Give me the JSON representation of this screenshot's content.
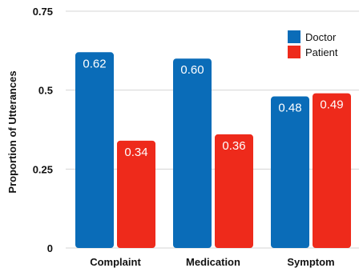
{
  "chart_data": {
    "type": "bar",
    "categories": [
      "Complaint",
      "Medication",
      "Symptom"
    ],
    "series": [
      {
        "name": "Doctor",
        "values": [
          0.62,
          0.6,
          0.48
        ],
        "labels": [
          "0.62",
          "0.60",
          "0.48"
        ],
        "color": "#0A6CB8"
      },
      {
        "name": "Patient",
        "values": [
          0.34,
          0.36,
          0.49
        ],
        "labels": [
          "0.34",
          "0.36",
          "0.49"
        ],
        "color": "#EE2A1B"
      }
    ],
    "ylabel": "Proportion of Utterances",
    "xlabel": "",
    "ylim": [
      0,
      0.75
    ],
    "yticks": [
      0,
      0.25,
      0.5,
      0.75
    ],
    "ytick_labels": [
      "0",
      "0.25",
      "0.5",
      "0.75"
    ],
    "grid": true,
    "legend_position": "top-right"
  }
}
